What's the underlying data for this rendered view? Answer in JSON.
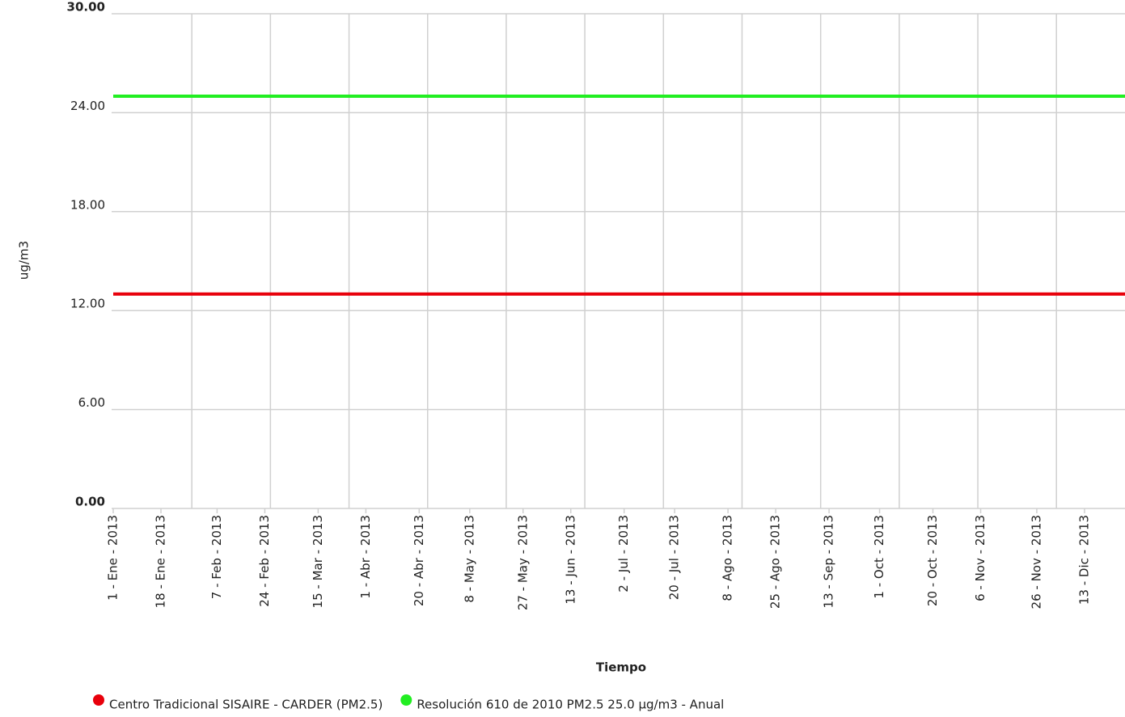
{
  "chart_data": {
    "type": "line",
    "x_label": "Tiempo",
    "y_label": "ug/m3",
    "xlim": [
      0,
      361
    ],
    "xticks": [
      {
        "value": 0,
        "label": "1 - Ene - 2013"
      },
      {
        "value": 17,
        "label": "18 - Ene - 2013"
      },
      {
        "value": 37,
        "label": "7 - Feb - 2013"
      },
      {
        "value": 54,
        "label": "24 - Feb - 2013"
      },
      {
        "value": 73,
        "label": "15 - Mar - 2013"
      },
      {
        "value": 90,
        "label": "1 - Abr - 2013"
      },
      {
        "value": 109,
        "label": "20 - Abr - 2013"
      },
      {
        "value": 127,
        "label": "8 - May - 2013"
      },
      {
        "value": 146,
        "label": "27 - May - 2013"
      },
      {
        "value": 163,
        "label": "13 - Jun - 2013"
      },
      {
        "value": 182,
        "label": "2 - Jul - 2013"
      },
      {
        "value": 200,
        "label": "20 - Jul - 2013"
      },
      {
        "value": 219,
        "label": "8 - Ago - 2013"
      },
      {
        "value": 236,
        "label": "25 - Ago - 2013"
      },
      {
        "value": 255,
        "label": "13 - Sep - 2013"
      },
      {
        "value": 273,
        "label": "1 - Oct - 2013"
      },
      {
        "value": 292,
        "label": "20 - Oct - 2013"
      },
      {
        "value": 309,
        "label": "6 - Nov - 2013"
      },
      {
        "value": 329,
        "label": "26 - Nov - 2013"
      },
      {
        "value": 346,
        "label": "13 - Dic - 2013"
      }
    ],
    "xgrid": [
      28,
      56,
      84,
      112,
      140,
      168,
      196,
      224,
      252,
      280,
      308,
      336
    ],
    "ylim": [
      0,
      30
    ],
    "yticks": [
      {
        "value": 0,
        "label": "0.00"
      },
      {
        "value": 6,
        "label": "6.00"
      },
      {
        "value": 12,
        "label": "12.00"
      },
      {
        "value": 18,
        "label": "18.00"
      },
      {
        "value": 24,
        "label": "24.00"
      },
      {
        "value": 30,
        "label": "30.00"
      }
    ],
    "grid": true,
    "x": [
      0,
      361
    ],
    "series": [
      {
        "name": "Centro Tradicional SISAIRE - CARDER (PM2.5)",
        "color": "#e8000b",
        "values": [
          13,
          13
        ]
      },
      {
        "name": "Resolución 610 de 2010 PM2.5 25.0 µg/m3 - Anual",
        "color": "#22ee22",
        "values": [
          25,
          25
        ]
      }
    ]
  }
}
